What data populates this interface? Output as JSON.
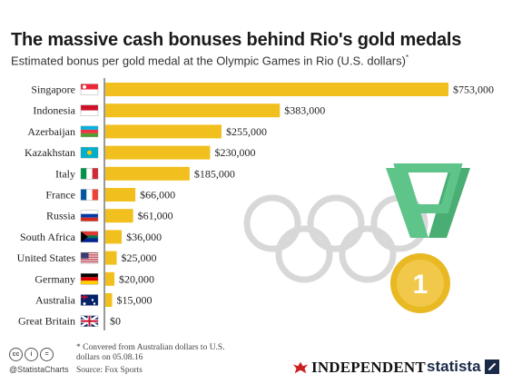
{
  "header": {
    "title": "The massive cash bonuses behind Rio's gold medals",
    "subtitle": "Estimated bonus per gold medal at the Olympic Games in Rio (U.S. dollars)",
    "subtitle_marker": "*"
  },
  "chart_data": {
    "type": "bar",
    "orientation": "horizontal",
    "title": "The massive cash bonuses behind Rio's gold medals",
    "subtitle": "Estimated bonus per gold medal at the Olympic Games in Rio (U.S. dollars)*",
    "categories": [
      "Singapore",
      "Indonesia",
      "Azerbaijan",
      "Kazakhstan",
      "Italy",
      "France",
      "Russia",
      "South Africa",
      "United States",
      "Germany",
      "Australia",
      "Great Britain"
    ],
    "values": [
      753000,
      383000,
      255000,
      230000,
      185000,
      66000,
      61000,
      36000,
      25000,
      20000,
      15000,
      0
    ],
    "value_labels": [
      "$753,000",
      "$383,000",
      "$255,000",
      "$230,000",
      "$185,000",
      "$66,000",
      "$61,000",
      "$36,000",
      "$25,000",
      "$20,000",
      "$15,000",
      "$0"
    ],
    "flags": [
      "singapore-flag",
      "indonesia-flag",
      "azerbaijan-flag",
      "kazakhstan-flag",
      "italy-flag",
      "france-flag",
      "russia-flag",
      "south-africa-flag",
      "united-states-flag",
      "germany-flag",
      "australia-flag",
      "great-britain-flag"
    ],
    "xlim": [
      0,
      753000
    ],
    "bar_color": "#f2c01e",
    "grid": false,
    "legend": "none"
  },
  "decor": {
    "medal_number": "1",
    "medal_color": "#e8b923",
    "ribbon_color": "#5fc48a"
  },
  "footer": {
    "cc_icons": [
      "cc",
      "i",
      "="
    ],
    "handle": "@StatistaCharts",
    "note_marker": "*",
    "note": "Convered from Australian dollars to U.S. dollars on 05.08.16",
    "source": "Source: Fox Sports",
    "independent": "INDEPENDENT",
    "statista": "statista"
  }
}
